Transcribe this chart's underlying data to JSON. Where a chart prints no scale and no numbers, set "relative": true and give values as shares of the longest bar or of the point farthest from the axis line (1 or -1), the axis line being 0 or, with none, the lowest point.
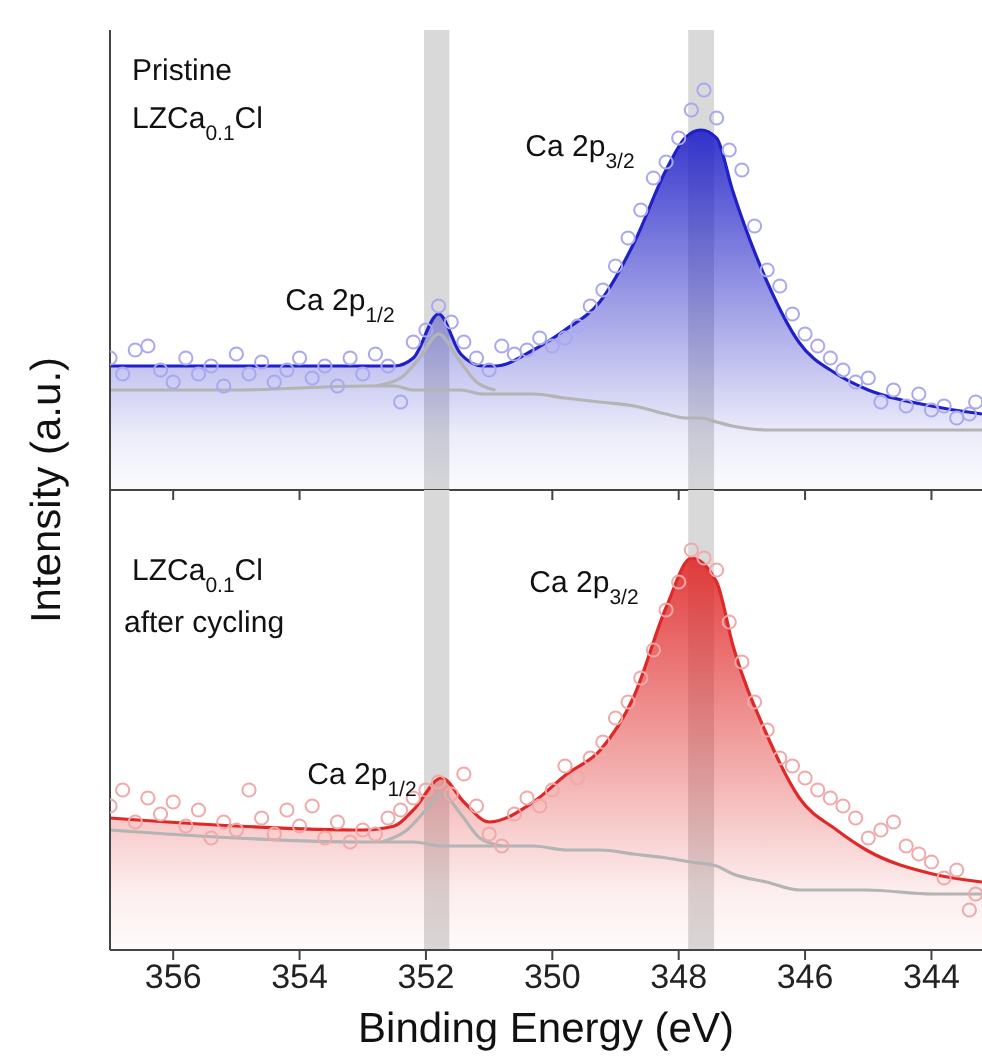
{
  "chart_data": [
    {
      "type": "line",
      "relative": true,
      "ylabel": "Intensity (a.u.)",
      "xlim": [
        357,
        343.2
      ],
      "xticks": [
        356,
        354,
        352,
        350,
        348,
        346,
        344
      ],
      "tick_labels": false,
      "grid": false,
      "legend": false,
      "annotations": [
        "Pristine",
        "LZCa$_{0.1}$Cl",
        "Ca 2p$_{1/2}$",
        "Ca 2p$_{3/2}$"
      ],
      "bands": [
        {
          "axis": "x",
          "from": 352.03,
          "to": 351.63,
          "color": "#d9d9d9"
        },
        {
          "axis": "x",
          "from": 347.85,
          "to": 347.44,
          "color": "#d9d9d9"
        }
      ],
      "series": [
        {
          "type": "scatter",
          "marker": "circle",
          "color": "#a8a8f0",
          "x": [
            357.0,
            356.8,
            356.6,
            356.4,
            356.2,
            356.0,
            355.8,
            355.6,
            355.4,
            355.2,
            355.0,
            354.8,
            354.6,
            354.4,
            354.2,
            354.0,
            353.8,
            353.6,
            353.4,
            353.2,
            353.0,
            352.8,
            352.6,
            352.4,
            352.2,
            352.0,
            351.8,
            351.6,
            351.4,
            351.2,
            351.0,
            350.8,
            350.6,
            350.4,
            350.2,
            350.0,
            349.8,
            349.6,
            349.4,
            349.2,
            349.0,
            348.8,
            348.6,
            348.4,
            348.2,
            348.0,
            347.8,
            347.6,
            347.4,
            347.2,
            347.0,
            346.8,
            346.6,
            346.4,
            346.2,
            346.0,
            345.8,
            345.6,
            345.4,
            345.2,
            345.0,
            344.8,
            344.6,
            344.4,
            344.2,
            344.0,
            343.8,
            343.6,
            343.4,
            343.3
          ],
          "values": [
            0.33,
            0.29,
            0.35,
            0.36,
            0.3,
            0.27,
            0.33,
            0.29,
            0.31,
            0.26,
            0.34,
            0.29,
            0.32,
            0.27,
            0.3,
            0.33,
            0.28,
            0.31,
            0.26,
            0.33,
            0.29,
            0.34,
            0.31,
            0.22,
            0.37,
            0.4,
            0.46,
            0.42,
            0.37,
            0.33,
            0.3,
            0.36,
            0.34,
            0.35,
            0.38,
            0.36,
            0.38,
            0.41,
            0.46,
            0.5,
            0.56,
            0.63,
            0.7,
            0.78,
            0.82,
            0.88,
            0.95,
            1.0,
            0.93,
            0.85,
            0.8,
            0.66,
            0.55,
            0.51,
            0.44,
            0.39,
            0.36,
            0.33,
            0.3,
            0.27,
            0.28,
            0.22,
            0.25,
            0.21,
            0.24,
            0.2,
            0.21,
            0.18,
            0.19,
            0.22
          ]
        },
        {
          "type": "area",
          "color": "#2020c8",
          "x": [
            357,
            355,
            353,
            352.5,
            352.2,
            351.8,
            351.45,
            351.1,
            350.9,
            350.3,
            349.8,
            349.25,
            348.7,
            348.2,
            347.9,
            347.65,
            347.4,
            347.15,
            346.6,
            346.1,
            345.5,
            345,
            344,
            343.2
          ],
          "values": [
            0.31,
            0.31,
            0.31,
            0.31,
            0.33,
            0.44,
            0.34,
            0.31,
            0.31,
            0.35,
            0.4,
            0.47,
            0.62,
            0.8,
            0.88,
            0.9,
            0.88,
            0.75,
            0.52,
            0.37,
            0.29,
            0.25,
            0.21,
            0.19
          ]
        },
        {
          "type": "line",
          "color": "#b4b4b4",
          "x": [
            352.8,
            352.4,
            352.1,
            351.8,
            351.5,
            351.2,
            350.9
          ],
          "values": [
            0.26,
            0.28,
            0.33,
            0.39,
            0.33,
            0.27,
            0.25
          ]
        },
        {
          "type": "line",
          "color": "#b4b4b4",
          "x": [
            357,
            355,
            353,
            352.5,
            352.2,
            351.8,
            351.45,
            351.1,
            350.9,
            350.3,
            349.8,
            349.25,
            348.7,
            348.2,
            347.9,
            347.65,
            347.4,
            347.15,
            346.6,
            346.1,
            345.5,
            345,
            344,
            343.2
          ],
          "values": [
            0.25,
            0.25,
            0.26,
            0.26,
            0.25,
            0.25,
            0.25,
            0.24,
            0.24,
            0.24,
            0.23,
            0.22,
            0.21,
            0.19,
            0.18,
            0.18,
            0.17,
            0.16,
            0.15,
            0.15,
            0.15,
            0.15,
            0.15,
            0.15
          ]
        }
      ]
    },
    {
      "type": "line",
      "relative": true,
      "xlabel": "Binding Energy (eV)",
      "xlim": [
        357,
        343.2
      ],
      "xticks": [
        356,
        354,
        352,
        350,
        348,
        346,
        344
      ],
      "tick_labels": "x",
      "grid": false,
      "legend": false,
      "annotations": [
        "LZCa$_{0.1}$Cl",
        "after cycling",
        "Ca 2p$_{1/2}$",
        "Ca 2p$_{3/2}$"
      ],
      "bands": [
        {
          "axis": "x",
          "from": 352.03,
          "to": 351.63,
          "color": "#d9d9d9"
        },
        {
          "axis": "x",
          "from": 347.85,
          "to": 347.44,
          "color": "#d9d9d9"
        }
      ],
      "series": [
        {
          "type": "scatter",
          "marker": "circle",
          "color": "#f0a8a8",
          "x": [
            357.0,
            356.8,
            356.6,
            356.4,
            356.2,
            356.0,
            355.8,
            355.6,
            355.4,
            355.2,
            355.0,
            354.8,
            354.6,
            354.4,
            354.2,
            354.0,
            353.8,
            353.6,
            353.4,
            353.2,
            353.0,
            352.8,
            352.6,
            352.4,
            352.2,
            352.0,
            351.8,
            351.6,
            351.4,
            351.2,
            351.0,
            350.8,
            350.6,
            350.4,
            350.2,
            350.0,
            349.8,
            349.6,
            349.4,
            349.2,
            349.0,
            348.8,
            348.6,
            348.4,
            348.2,
            348.0,
            347.8,
            347.6,
            347.4,
            347.2,
            347.0,
            346.8,
            346.6,
            346.4,
            346.2,
            346.0,
            345.8,
            345.6,
            345.4,
            345.2,
            345.0,
            344.8,
            344.6,
            344.4,
            344.2,
            344.0,
            343.8,
            343.6,
            343.4,
            343.3
          ],
          "values": [
            0.36,
            0.4,
            0.32,
            0.38,
            0.34,
            0.37,
            0.31,
            0.35,
            0.28,
            0.32,
            0.3,
            0.4,
            0.33,
            0.29,
            0.35,
            0.31,
            0.36,
            0.28,
            0.32,
            0.27,
            0.3,
            0.29,
            0.33,
            0.35,
            0.38,
            0.4,
            0.42,
            0.39,
            0.44,
            0.36,
            0.29,
            0.26,
            0.34,
            0.38,
            0.36,
            0.4,
            0.46,
            0.43,
            0.48,
            0.52,
            0.58,
            0.62,
            0.68,
            0.75,
            0.85,
            0.92,
            1.0,
            0.98,
            0.95,
            0.82,
            0.72,
            0.62,
            0.55,
            0.48,
            0.46,
            0.43,
            0.4,
            0.38,
            0.36,
            0.33,
            0.28,
            0.3,
            0.32,
            0.26,
            0.24,
            0.22,
            0.18,
            0.2,
            0.1,
            0.14
          ]
        },
        {
          "type": "area",
          "color": "#e02828",
          "x": [
            357,
            355,
            353,
            352.5,
            352.2,
            351.75,
            351.4,
            351.0,
            350.3,
            349.77,
            349.24,
            348.72,
            348.19,
            347.8,
            347.4,
            347.14,
            346.61,
            346.09,
            345.5,
            345.03,
            343.98,
            343.2
          ],
          "values": [
            0.33,
            0.31,
            0.3,
            0.31,
            0.35,
            0.43,
            0.37,
            0.32,
            0.37,
            0.44,
            0.5,
            0.63,
            0.86,
            0.98,
            0.92,
            0.76,
            0.54,
            0.38,
            0.3,
            0.25,
            0.19,
            0.17
          ]
        },
        {
          "type": "line",
          "color": "#b4b4b4",
          "x": [
            352.7,
            352.3,
            352.0,
            351.75,
            351.45,
            351.15,
            350.8
          ],
          "values": [
            0.27,
            0.3,
            0.35,
            0.39,
            0.34,
            0.28,
            0.26
          ]
        },
        {
          "type": "line",
          "color": "#b4b4b4",
          "x": [
            357,
            355,
            353,
            352.5,
            352.2,
            351.75,
            351.4,
            351.0,
            350.3,
            349.77,
            349.24,
            348.72,
            348.19,
            347.8,
            347.4,
            347.14,
            346.61,
            346.09,
            345.5,
            345.03,
            343.98,
            343.2
          ],
          "values": [
            0.3,
            0.28,
            0.27,
            0.27,
            0.27,
            0.26,
            0.26,
            0.26,
            0.26,
            0.25,
            0.25,
            0.24,
            0.23,
            0.22,
            0.21,
            0.19,
            0.17,
            0.15,
            0.15,
            0.15,
            0.14,
            0.14
          ]
        }
      ]
    }
  ]
}
